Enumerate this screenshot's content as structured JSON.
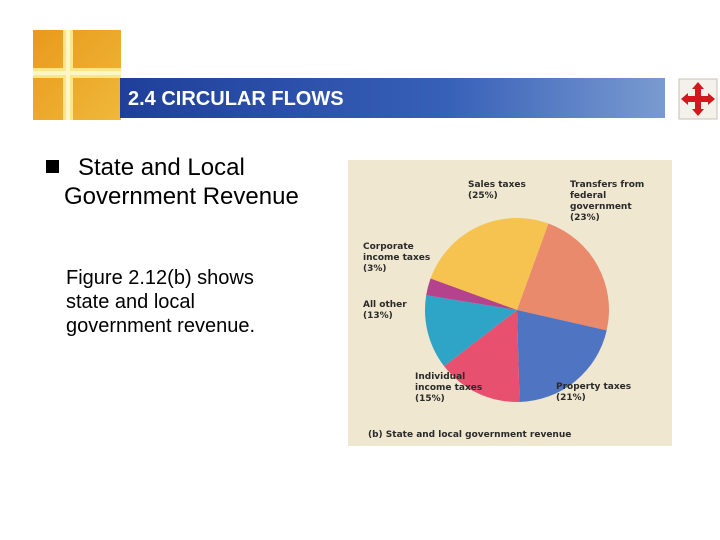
{
  "slide": {
    "title": "2.4 CIRCULAR FLOWS",
    "bullet": "State and Local Government Revenue",
    "body": "Figure 2.12(b) shows state and local government revenue."
  },
  "chart_data": {
    "type": "pie",
    "caption": "(b) State and local government revenue",
    "categories": [
      "Sales taxes",
      "Transfers from federal government",
      "Property taxes",
      "Individual income taxes",
      "All other",
      "Corporate income taxes"
    ],
    "values": [
      25,
      23,
      21,
      15,
      13,
      3
    ],
    "value_labels": [
      "(25%)",
      "(23%)",
      "(21%)",
      "(15%)",
      "(13%)",
      "(3%)"
    ],
    "colors": [
      "#f6c350",
      "#e98a6c",
      "#4f74c2",
      "#e8506f",
      "#2ea4c6",
      "#b5428c"
    ]
  }
}
